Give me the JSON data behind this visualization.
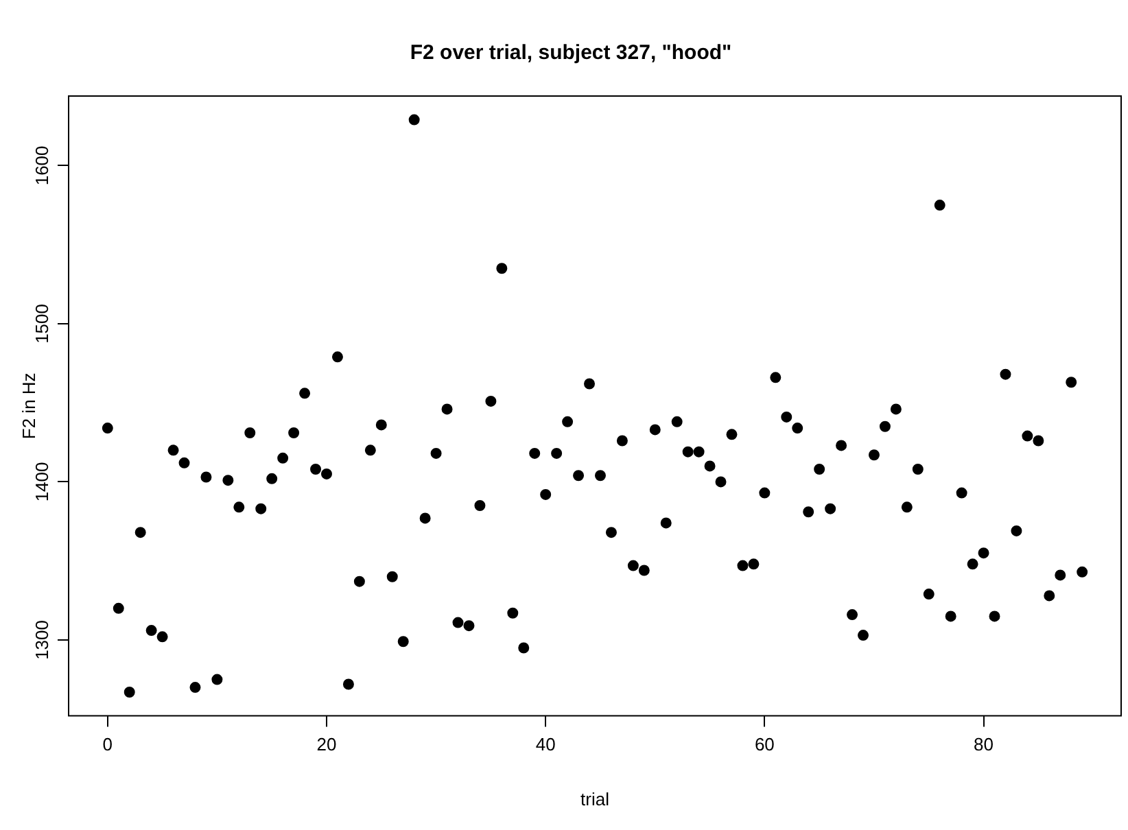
{
  "chart_data": {
    "type": "scatter",
    "title": "F2 over trial, subject 327, \"hood\"",
    "xlabel": "trial",
    "ylabel": "F2 in Hz",
    "x": [
      0,
      1,
      2,
      3,
      4,
      5,
      6,
      7,
      8,
      9,
      10,
      11,
      12,
      13,
      14,
      15,
      16,
      17,
      18,
      19,
      20,
      21,
      22,
      23,
      24,
      25,
      26,
      27,
      28,
      29,
      30,
      31,
      32,
      33,
      34,
      35,
      36,
      37,
      38,
      39,
      40,
      41,
      42,
      43,
      44,
      45,
      46,
      47,
      48,
      49,
      50,
      51,
      52,
      53,
      54,
      55,
      56,
      57,
      58,
      59,
      60,
      61,
      62,
      63,
      64,
      65,
      66,
      67,
      68,
      69,
      70,
      71,
      72,
      73,
      74,
      75,
      76,
      77,
      78,
      79,
      80,
      81,
      82,
      83,
      84,
      85,
      86,
      87,
      88,
      89
    ],
    "series": [
      {
        "color": "#000000",
        "values": [
          1434,
          1320,
          1267,
          1368,
          1306,
          1302,
          1420,
          1412,
          1270,
          1403,
          1275,
          1401,
          1384,
          1431,
          1383,
          1402,
          1415,
          1431,
          1456,
          1408,
          1405,
          1479,
          1272,
          1337,
          1420,
          1436,
          1340,
          1299,
          1629,
          1377,
          1418,
          1446,
          1311,
          1309,
          1385,
          1451,
          1535,
          1317,
          1295,
          1418,
          1392,
          1418,
          1438,
          1404,
          1462,
          1404,
          1368,
          1426,
          1347,
          1344,
          1433,
          1374,
          1438,
          1419,
          1419,
          1410,
          1400,
          1430,
          1347,
          1348,
          1393,
          1466,
          1441,
          1434,
          1381,
          1408,
          1383,
          1423,
          1316,
          1303,
          1417,
          1435,
          1446,
          1384,
          1408,
          1329,
          1575,
          1315,
          1393,
          1348,
          1355,
          1315,
          1468,
          1369,
          1429,
          1426,
          1328,
          1341,
          1463,
          1343
        ]
      }
    ],
    "xlim": [
      -3.56,
      92.56
    ],
    "ylim": [
      1252,
      1644
    ],
    "xticks": [
      0,
      20,
      40,
      60,
      80
    ],
    "yticks": [
      1300,
      1400,
      1500,
      1600
    ],
    "grid": false,
    "legend": false,
    "marker": "circle"
  }
}
